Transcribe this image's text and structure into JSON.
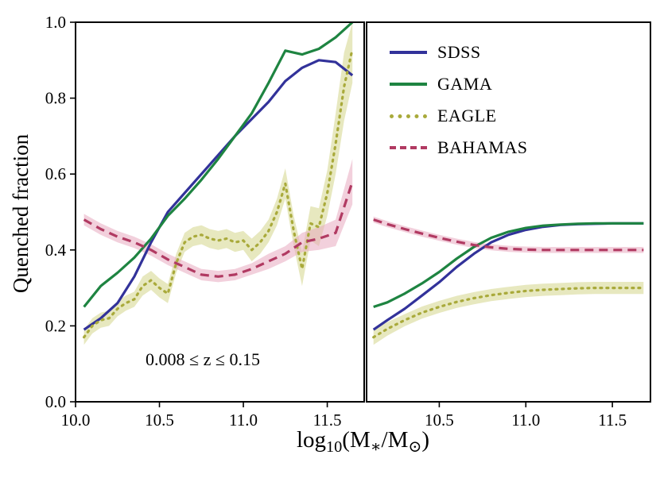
{
  "figure": {
    "ylabel": "Quenched fraction",
    "xlabel_plain": "log10(M*/M⊙)",
    "xlabel_parts": [
      "log",
      "10",
      "(M",
      "∗",
      "/M",
      "⊙",
      ")"
    ],
    "annotation": "0.008 ≤ z ≤ 0.15",
    "background": "#ffffff",
    "frame_color": "#000000"
  },
  "legend": {
    "position": "upper right",
    "items": [
      {
        "label": "SDSS",
        "color": "#32329a",
        "style": "solid"
      },
      {
        "label": "GAMA",
        "color": "#1e8441",
        "style": "solid"
      },
      {
        "label": "EAGLE",
        "color": "#a9aa3b",
        "style": "dotted"
      },
      {
        "label": "BAHAMAS",
        "color": "#b13a62",
        "style": "dashed"
      }
    ]
  },
  "chart_data": [
    {
      "type": "line",
      "panel": "left",
      "xlim": [
        10.0,
        11.72
      ],
      "ylim": [
        0,
        1
      ],
      "xticks": [
        10.0,
        10.5,
        11.0,
        11.5
      ],
      "xtick_labels": [
        "10.0",
        "10.5",
        "11.0",
        "11.5"
      ],
      "yticks": [
        0,
        0.2,
        0.4,
        0.6,
        0.8,
        1.0
      ],
      "ytick_labels": [
        "0.0",
        "0.2",
        "0.4",
        "0.6",
        "0.8",
        "1.0"
      ],
      "grid": false,
      "series": [
        {
          "name": "SDSS",
          "color": "#32329a",
          "style": "solid",
          "x": [
            10.05,
            10.15,
            10.25,
            10.35,
            10.45,
            10.55,
            10.65,
            10.75,
            10.85,
            10.95,
            11.05,
            11.15,
            11.25,
            11.35,
            11.45,
            11.55,
            11.65
          ],
          "y": [
            0.19,
            0.22,
            0.26,
            0.33,
            0.42,
            0.5,
            0.55,
            0.6,
            0.65,
            0.7,
            0.745,
            0.79,
            0.845,
            0.88,
            0.9,
            0.895,
            0.86
          ]
        },
        {
          "name": "GAMA",
          "color": "#1e8441",
          "style": "solid",
          "x": [
            10.05,
            10.15,
            10.25,
            10.35,
            10.45,
            10.55,
            10.65,
            10.75,
            10.85,
            10.95,
            11.05,
            11.15,
            11.25,
            11.35,
            11.45,
            11.55,
            11.65
          ],
          "y": [
            0.25,
            0.305,
            0.34,
            0.38,
            0.43,
            0.49,
            0.535,
            0.585,
            0.64,
            0.7,
            0.76,
            0.84,
            0.925,
            0.915,
            0.93,
            0.96,
            1.0
          ]
        },
        {
          "name": "EAGLE",
          "color": "#a9aa3b",
          "style": "dotted",
          "band_color": "#d3d58a",
          "x": [
            10.05,
            10.1,
            10.15,
            10.2,
            10.25,
            10.3,
            10.35,
            10.4,
            10.45,
            10.5,
            10.55,
            10.6,
            10.65,
            10.7,
            10.75,
            10.8,
            10.85,
            10.9,
            10.95,
            11.0,
            11.05,
            11.1,
            11.15,
            11.2,
            11.25,
            11.3,
            11.35,
            11.4,
            11.45,
            11.5,
            11.55,
            11.6,
            11.65
          ],
          "y": [
            0.17,
            0.2,
            0.215,
            0.22,
            0.245,
            0.26,
            0.27,
            0.305,
            0.32,
            0.3,
            0.285,
            0.365,
            0.42,
            0.435,
            0.44,
            0.43,
            0.425,
            0.43,
            0.42,
            0.425,
            0.4,
            0.42,
            0.45,
            0.5,
            0.575,
            0.45,
            0.35,
            0.47,
            0.46,
            0.55,
            0.68,
            0.83,
            0.93
          ],
          "band_halfwidth": [
            0.02,
            0.02,
            0.02,
            0.02,
            0.02,
            0.02,
            0.02,
            0.025,
            0.025,
            0.025,
            0.025,
            0.025,
            0.025,
            0.025,
            0.025,
            0.025,
            0.025,
            0.025,
            0.025,
            0.025,
            0.03,
            0.03,
            0.03,
            0.035,
            0.04,
            0.04,
            0.045,
            0.045,
            0.05,
            0.06,
            0.08,
            0.09,
            0.09
          ]
        },
        {
          "name": "BAHAMAS",
          "color": "#b13a62",
          "style": "dashed",
          "band_color": "#e7aabf",
          "x": [
            10.05,
            10.15,
            10.25,
            10.35,
            10.45,
            10.55,
            10.65,
            10.75,
            10.85,
            10.95,
            11.05,
            11.15,
            11.25,
            11.35,
            11.45,
            11.55,
            11.65
          ],
          "y": [
            0.48,
            0.455,
            0.435,
            0.42,
            0.4,
            0.375,
            0.355,
            0.335,
            0.33,
            0.335,
            0.35,
            0.37,
            0.39,
            0.42,
            0.43,
            0.445,
            0.58
          ],
          "band_halfwidth": [
            0.015,
            0.015,
            0.015,
            0.015,
            0.015,
            0.015,
            0.015,
            0.015,
            0.015,
            0.015,
            0.015,
            0.02,
            0.02,
            0.025,
            0.03,
            0.035,
            0.06
          ]
        }
      ]
    },
    {
      "type": "line",
      "panel": "right",
      "xlim": [
        10.08,
        11.72
      ],
      "ylim": [
        0,
        1
      ],
      "xticks": [
        10.5,
        11.0,
        11.5
      ],
      "xtick_labels": [
        "10.5",
        "11.0",
        "11.5"
      ],
      "yticks": [
        0,
        0.2,
        0.4,
        0.6,
        0.8,
        1.0
      ],
      "ytick_labels": [],
      "grid": false,
      "series": [
        {
          "name": "SDSS",
          "color": "#32329a",
          "style": "solid",
          "x": [
            10.12,
            10.2,
            10.3,
            10.4,
            10.5,
            10.6,
            10.7,
            10.8,
            10.9,
            11.0,
            11.1,
            11.2,
            11.3,
            11.4,
            11.5,
            11.6,
            11.68
          ],
          "y": [
            0.19,
            0.215,
            0.245,
            0.28,
            0.315,
            0.355,
            0.39,
            0.42,
            0.44,
            0.453,
            0.461,
            0.466,
            0.468,
            0.469,
            0.47,
            0.47,
            0.47
          ]
        },
        {
          "name": "GAMA",
          "color": "#1e8441",
          "style": "solid",
          "x": [
            10.12,
            10.2,
            10.3,
            10.4,
            10.5,
            10.6,
            10.7,
            10.8,
            10.9,
            11.0,
            11.1,
            11.2,
            11.3,
            11.4,
            11.5,
            11.6,
            11.68
          ],
          "y": [
            0.25,
            0.262,
            0.285,
            0.312,
            0.342,
            0.377,
            0.408,
            0.432,
            0.448,
            0.458,
            0.464,
            0.467,
            0.469,
            0.47,
            0.47,
            0.47,
            0.47
          ]
        },
        {
          "name": "EAGLE",
          "color": "#a9aa3b",
          "style": "dotted",
          "band_color": "#d3d58a",
          "x": [
            10.12,
            10.2,
            10.3,
            10.4,
            10.5,
            10.6,
            10.7,
            10.8,
            10.9,
            11.0,
            11.1,
            11.2,
            11.3,
            11.4,
            11.5,
            11.6,
            11.68
          ],
          "y": [
            0.17,
            0.192,
            0.215,
            0.235,
            0.25,
            0.263,
            0.273,
            0.281,
            0.287,
            0.292,
            0.295,
            0.297,
            0.299,
            0.3,
            0.3,
            0.3,
            0.3
          ],
          "band_halfwidth": [
            0.02,
            0.018,
            0.016,
            0.016,
            0.016,
            0.016,
            0.016,
            0.016,
            0.016,
            0.016,
            0.016,
            0.016,
            0.016,
            0.016,
            0.016,
            0.016,
            0.016
          ]
        },
        {
          "name": "BAHAMAS",
          "color": "#b13a62",
          "style": "dashed",
          "band_color": "#e7aabf",
          "x": [
            10.12,
            10.2,
            10.3,
            10.4,
            10.5,
            10.6,
            10.7,
            10.8,
            10.9,
            11.0,
            11.1,
            11.2,
            11.3,
            11.4,
            11.5,
            11.6,
            11.68
          ],
          "y": [
            0.48,
            0.468,
            0.455,
            0.443,
            0.432,
            0.422,
            0.413,
            0.407,
            0.403,
            0.401,
            0.4,
            0.4,
            0.4,
            0.4,
            0.4,
            0.4,
            0.4
          ],
          "band_halfwidth": [
            0.008,
            0.008,
            0.008,
            0.008,
            0.008,
            0.008,
            0.008,
            0.008,
            0.008,
            0.008,
            0.008,
            0.008,
            0.008,
            0.008,
            0.008,
            0.008,
            0.008
          ]
        }
      ]
    }
  ]
}
